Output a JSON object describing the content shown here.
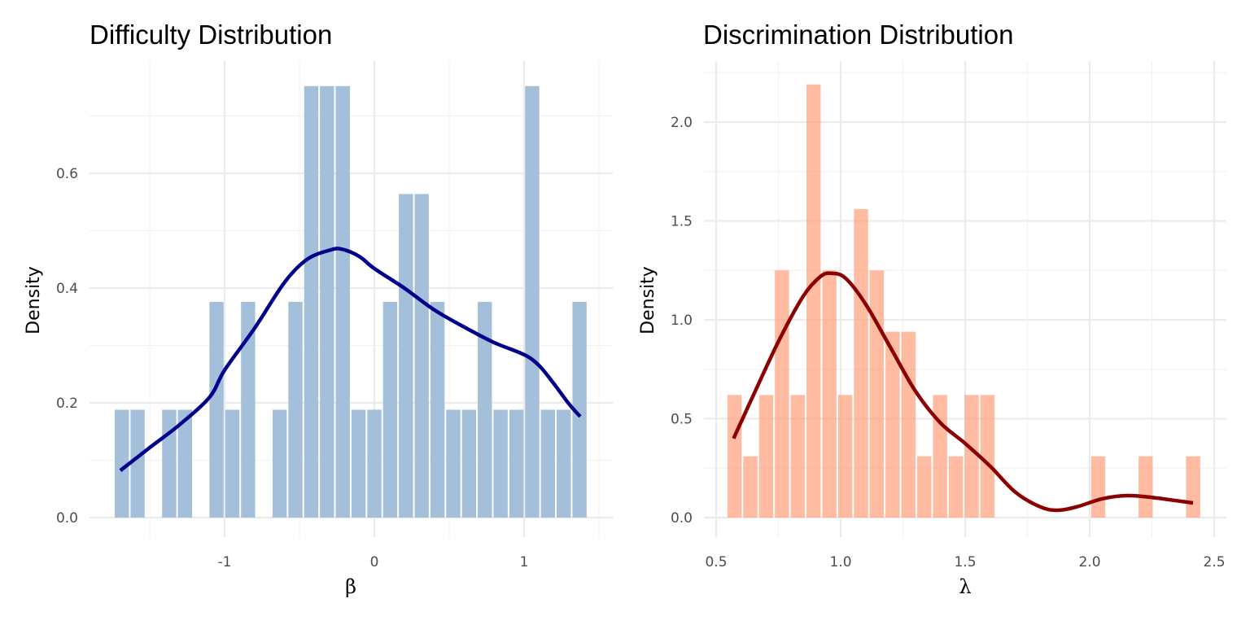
{
  "chart_data": [
    {
      "type": "bar",
      "subtype": "histogram-with-density",
      "title": "Difficulty Distribution",
      "xlabel": "β",
      "ylabel": "Density",
      "xlim": [
        -1.85,
        1.55
      ],
      "ylim": [
        0,
        0.79
      ],
      "x_ticks": [
        -1,
        0,
        1
      ],
      "x_tick_labels": [
        "-1",
        "0",
        "1"
      ],
      "x_minor": [
        -1.5,
        -0.5,
        0.5,
        1.5
      ],
      "y_ticks": [
        0.0,
        0.2,
        0.4,
        0.6
      ],
      "y_tick_labels": [
        "0.0",
        "0.2",
        "0.4",
        "0.6"
      ],
      "y_minor": [
        0.1,
        0.3,
        0.5,
        0.7
      ],
      "grid": true,
      "bin_start": -1.739,
      "bin_width": 0.1054,
      "values": [
        0.188,
        0.188,
        0,
        0.188,
        0.188,
        0,
        0.376,
        0.188,
        0.376,
        0,
        0.188,
        0.376,
        0.752,
        0.752,
        0.752,
        0.188,
        0.188,
        0.376,
        0.564,
        0.564,
        0.376,
        0.188,
        0.188,
        0.376,
        0.188,
        0.188,
        0.752,
        0.188,
        0.188,
        0.376
      ],
      "bar_color": "#a3bfd9",
      "density_color": "#00008b",
      "density": {
        "x": [
          -1.696,
          -1.5,
          -1.3,
          -1.1,
          -1.0,
          -0.8,
          -0.6,
          -0.45,
          -0.3,
          -0.22,
          -0.1,
          0.0,
          0.2,
          0.4,
          0.6,
          0.8,
          1.0,
          1.1,
          1.2,
          1.3,
          1.375
        ],
        "y": [
          0.082,
          0.122,
          0.162,
          0.21,
          0.257,
          0.33,
          0.41,
          0.45,
          0.466,
          0.468,
          0.455,
          0.434,
          0.4,
          0.362,
          0.332,
          0.305,
          0.284,
          0.265,
          0.233,
          0.198,
          0.176
        ]
      }
    },
    {
      "type": "bar",
      "subtype": "histogram-with-density",
      "title": "Discrimination Distribution",
      "xlabel": "λ",
      "ylabel": "Density",
      "xlim": [
        0.49,
        2.54
      ],
      "ylim": [
        0,
        2.3
      ],
      "x_ticks": [
        0.5,
        1.0,
        1.5,
        2.0,
        2.5
      ],
      "x_tick_labels": [
        "0.5",
        "1.0",
        "1.5",
        "2.0",
        "2.5"
      ],
      "x_minor": [
        0.75,
        1.25,
        1.75,
        2.25
      ],
      "y_ticks": [
        0.0,
        0.5,
        1.0,
        1.5,
        2.0
      ],
      "y_tick_labels": [
        "0.0",
        "0.5",
        "1.0",
        "1.5",
        "2.0"
      ],
      "y_minor": [
        0.25,
        0.75,
        1.25,
        1.75,
        2.25
      ],
      "grid": true,
      "bin_start": 0.542,
      "bin_width": 0.0635,
      "values": [
        0.62,
        0.31,
        0.62,
        1.25,
        0.62,
        2.19,
        1.25,
        0.62,
        1.56,
        1.25,
        0.94,
        0.94,
        0.31,
        0.62,
        0.31,
        0.62,
        0.62,
        0,
        0,
        0,
        0,
        0,
        0,
        0.31,
        0,
        0,
        0.31,
        0,
        0,
        0.31
      ],
      "bar_color": "#ffa07a",
      "density_color": "#8b0000",
      "density": {
        "x": [
          0.57,
          0.65,
          0.75,
          0.85,
          0.92,
          0.965,
          1.02,
          1.1,
          1.2,
          1.3,
          1.4,
          1.5,
          1.6,
          1.7,
          1.8,
          1.87,
          1.95,
          2.05,
          2.15,
          2.25,
          2.35,
          2.415
        ],
        "y": [
          0.4,
          0.62,
          0.89,
          1.12,
          1.22,
          1.235,
          1.21,
          1.08,
          0.86,
          0.64,
          0.48,
          0.375,
          0.26,
          0.13,
          0.055,
          0.037,
          0.055,
          0.095,
          0.111,
          0.102,
          0.085,
          0.074
        ]
      }
    }
  ]
}
